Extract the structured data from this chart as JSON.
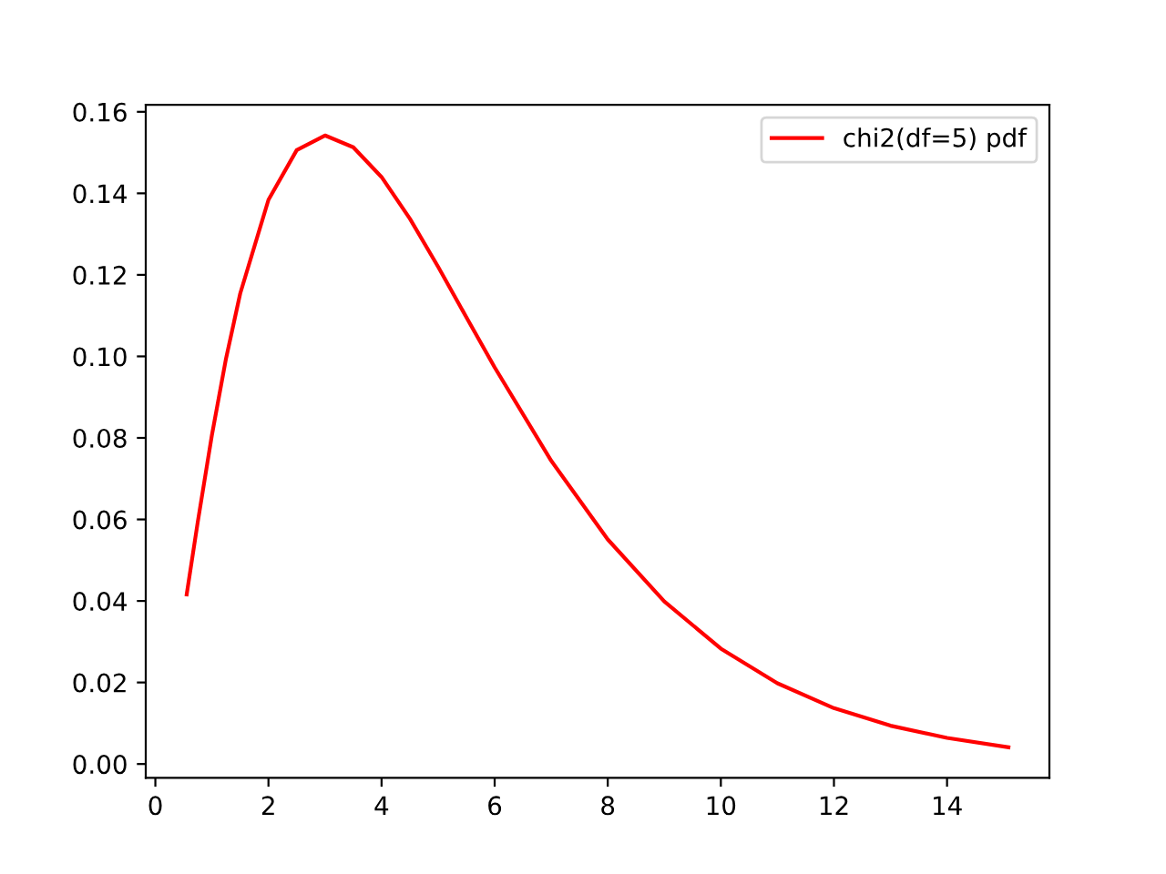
{
  "chart_data": {
    "type": "line",
    "x": [
      0.554,
      0.75,
      1,
      1.25,
      1.5,
      2,
      2.5,
      3,
      3.5,
      4,
      4.5,
      5,
      5.5,
      6,
      7,
      8,
      9,
      10,
      11,
      12,
      13,
      14,
      15.086
    ],
    "series": [
      {
        "name": "chi2(df=5) pdf",
        "color": "#ff0000",
        "values": [
          0.0416,
          0.0594,
          0.0807,
          0.0995,
          0.1154,
          0.1384,
          0.1506,
          0.1542,
          0.1513,
          0.144,
          0.1338,
          0.122,
          0.1096,
          0.0973,
          0.0744,
          0.0551,
          0.0399,
          0.0283,
          0.0198,
          0.0137,
          0.0094,
          0.0064,
          0.0041
        ]
      }
    ],
    "xlim": [
      -0.17,
      15.81
    ],
    "ylim": [
      -0.0034,
      0.1617
    ],
    "xticks": [
      0,
      2,
      4,
      6,
      8,
      10,
      12,
      14
    ],
    "yticks": [
      {
        "value": 0,
        "label": "0.00"
      },
      {
        "value": 0.02,
        "label": "0.02"
      },
      {
        "value": 0.04,
        "label": "0.04"
      },
      {
        "value": 0.06,
        "label": "0.06"
      },
      {
        "value": 0.08,
        "label": "0.08"
      },
      {
        "value": 0.1,
        "label": "0.10"
      },
      {
        "value": 0.12,
        "label": "0.12"
      },
      {
        "value": 0.14,
        "label": "0.14"
      },
      {
        "value": 0.16,
        "label": "0.16"
      }
    ],
    "legend": "top right",
    "marker": "none",
    "line_style": "solid",
    "grid": false
  }
}
